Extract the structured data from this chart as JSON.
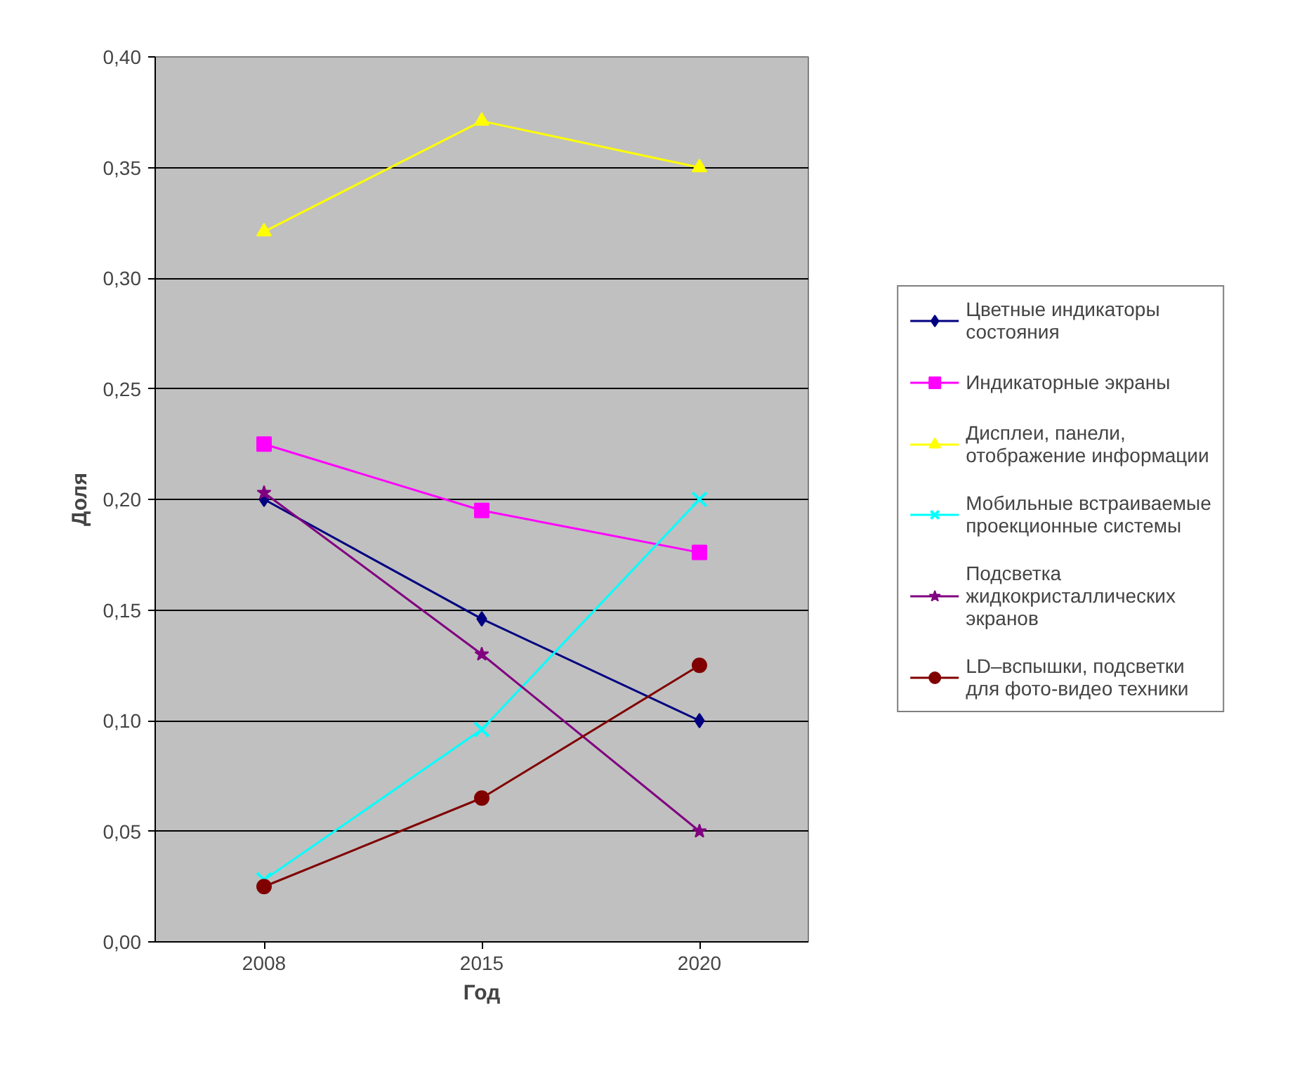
{
  "chart_data": {
    "type": "line",
    "xlabel": "Год",
    "ylabel": "Доля",
    "categories": [
      "2008",
      "2015",
      "2020"
    ],
    "ylim": [
      0,
      0.4
    ],
    "yticks": [
      {
        "value": 0,
        "label": "0,00"
      },
      {
        "value": 0.05,
        "label": "0,05"
      },
      {
        "value": 0.1,
        "label": "0,10"
      },
      {
        "value": 0.15,
        "label": "0,15"
      },
      {
        "value": 0.2,
        "label": "0,20"
      },
      {
        "value": 0.25,
        "label": "0,25"
      },
      {
        "value": 0.3,
        "label": "0,30"
      },
      {
        "value": 0.35,
        "label": "0,35"
      },
      {
        "value": 0.4,
        "label": "0,40"
      }
    ],
    "grid": "y",
    "legend": "right",
    "series": [
      {
        "name": "Цветные индикаторы состояния",
        "color": "#000080",
        "marker": "diamond",
        "values": [
          0.2,
          0.146,
          0.1
        ]
      },
      {
        "name": "Индикаторные экраны",
        "color": "#ff00ff",
        "marker": "square",
        "values": [
          0.225,
          0.195,
          0.176
        ]
      },
      {
        "name": "Дисплеи, панели, отображение информации",
        "color": "#ffff00",
        "marker": "triangle",
        "values": [
          0.321,
          0.371,
          0.35
        ]
      },
      {
        "name": "Мобильные встраиваемые проекционные системы",
        "color": "#00ffff",
        "marker": "cross",
        "values": [
          0.028,
          0.096,
          0.2
        ]
      },
      {
        "name": "Подсветка жидкокристаллических экранов",
        "color": "#800080",
        "marker": "star",
        "values": [
          0.203,
          0.13,
          0.05
        ]
      },
      {
        "name": "LD–вспышки, подсветки для фото-видео техники",
        "color": "#800000",
        "marker": "circle",
        "values": [
          0.025,
          0.065,
          0.125
        ]
      }
    ]
  }
}
